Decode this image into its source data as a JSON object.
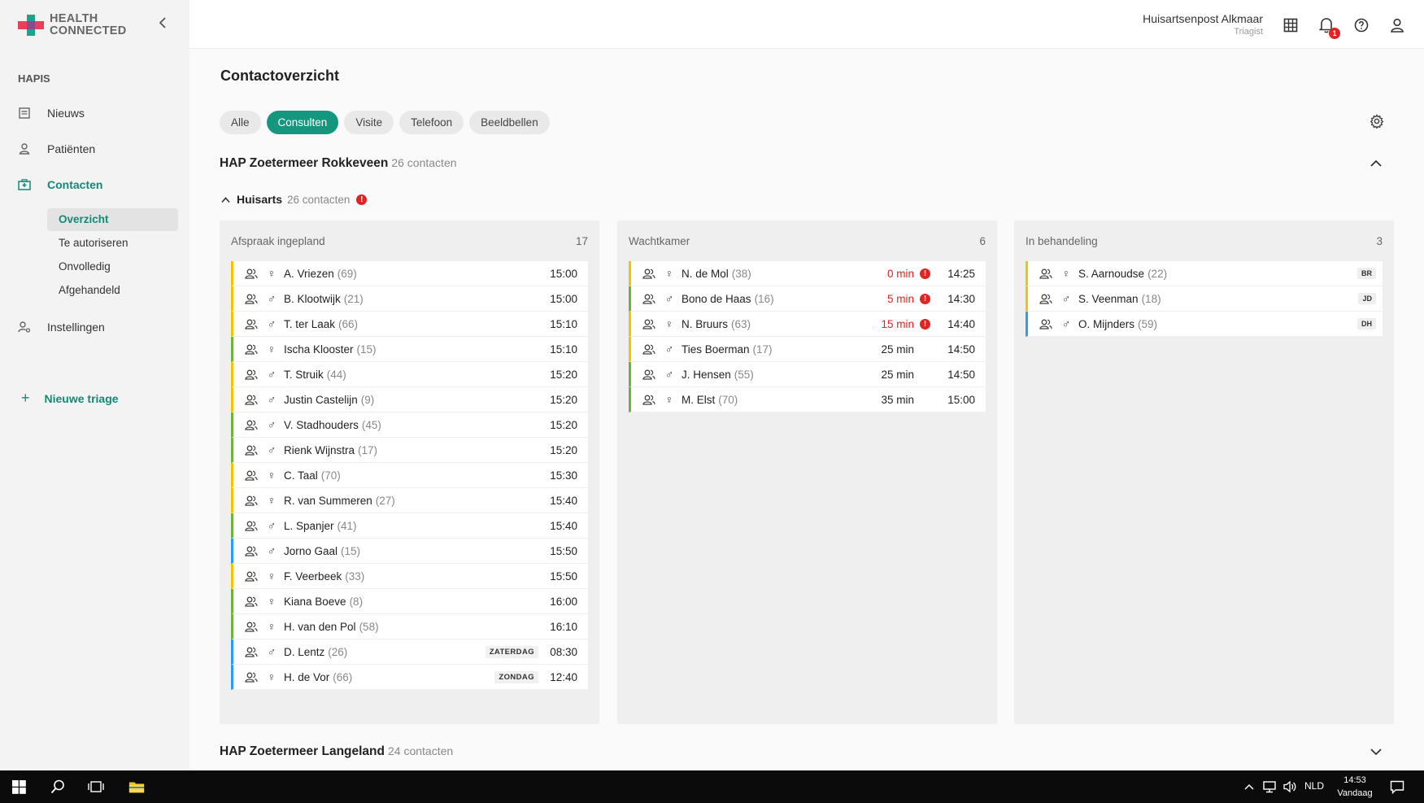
{
  "brand": {
    "line1": "HEALTH",
    "line2": "CONNECTED"
  },
  "sidebar": {
    "section": "HAPIS",
    "items": [
      {
        "label": "Nieuws",
        "icon": "newspaper-icon"
      },
      {
        "label": "Patiënten",
        "icon": "person-icon"
      },
      {
        "label": "Contacten",
        "icon": "hospital-icon"
      },
      {
        "label": "Instellingen",
        "icon": "user-settings-icon"
      }
    ],
    "subitems": [
      "Overzicht",
      "Te autoriseren",
      "Onvolledig",
      "Afgehandeld"
    ],
    "new_triage": "Nieuwe triage"
  },
  "header": {
    "org_name": "Huisartsenpost Alkmaar",
    "org_role": "Triagist",
    "notification_count": "1"
  },
  "page": {
    "title": "Contactoverzicht",
    "filters": [
      "Alle",
      "Consulten",
      "Visite",
      "Telefoon",
      "Beeldbellen"
    ],
    "active_filter": "Consulten"
  },
  "groups": [
    {
      "name": "HAP Zoetermeer Rokkeveen",
      "count": "26 contacten"
    },
    {
      "name": "HAP Zoetermeer Langeland",
      "count": "24 contacten"
    }
  ],
  "subgroup": {
    "name": "Huisarts",
    "count": "26 contacten",
    "alert": "!"
  },
  "columns": [
    {
      "title": "Afspraak ingepland",
      "count": "17",
      "rows": [
        {
          "color": "yellow",
          "sex": "♀",
          "name": "A. Vriezen",
          "age": "(69)",
          "time": "15:00"
        },
        {
          "color": "yellow",
          "sex": "♂",
          "name": "B. Klootwijk",
          "age": "(21)",
          "time": "15:00"
        },
        {
          "color": "yellow",
          "sex": "♂",
          "name": "T. ter Laak",
          "age": "(66)",
          "time": "15:10"
        },
        {
          "color": "green",
          "sex": "♀",
          "name": "Ischa Klooster",
          "age": "(15)",
          "time": "15:10"
        },
        {
          "color": "yellow",
          "sex": "♂",
          "name": "T. Struik",
          "age": "(44)",
          "time": "15:20"
        },
        {
          "color": "yellow",
          "sex": "♂",
          "name": "Justin Castelijn",
          "age": "(9)",
          "time": "15:20"
        },
        {
          "color": "green",
          "sex": "♂",
          "name": "V. Stadhouders",
          "age": "(45)",
          "time": "15:20"
        },
        {
          "color": "green",
          "sex": "♂",
          "name": "Rienk Wijnstra",
          "age": "(17)",
          "time": "15:20"
        },
        {
          "color": "yellow",
          "sex": "♀",
          "name": "C. Taal",
          "age": "(70)",
          "time": "15:30"
        },
        {
          "color": "yellow",
          "sex": "♀",
          "name": "R. van Summeren",
          "age": "(27)",
          "time": "15:40"
        },
        {
          "color": "green",
          "sex": "♂",
          "name": "L. Spanjer",
          "age": "(41)",
          "time": "15:40"
        },
        {
          "color": "blue",
          "sex": "♂",
          "name": "Jorno Gaal",
          "age": "(15)",
          "time": "15:50"
        },
        {
          "color": "yellow",
          "sex": "♀",
          "name": "F. Veerbeek",
          "age": "(33)",
          "time": "15:50"
        },
        {
          "color": "green",
          "sex": "♀",
          "name": "Kiana Boeve",
          "age": "(8)",
          "time": "16:00"
        },
        {
          "color": "green",
          "sex": "♀",
          "name": "H. van den Pol",
          "age": "(58)",
          "time": "16:10"
        },
        {
          "color": "blue",
          "sex": "♂",
          "name": "D. Lentz",
          "age": "(26)",
          "time": "08:30",
          "day": "ZATERDAG"
        },
        {
          "color": "blue",
          "sex": "♀",
          "name": "H. de Vor",
          "age": "(66)",
          "time": "12:40",
          "day": "ZONDAG"
        }
      ]
    },
    {
      "title": "Wachtkamer",
      "count": "6",
      "rows": [
        {
          "color": "yellow",
          "sex": "♀",
          "name": "N. de Mol",
          "age": "(38)",
          "wait": "0 min",
          "late": true,
          "time": "14:25"
        },
        {
          "color": "green",
          "sex": "♂",
          "name": "Bono de Haas",
          "age": "(16)",
          "wait": "5 min",
          "late": true,
          "time": "14:30"
        },
        {
          "color": "yellow",
          "sex": "♀",
          "name": "N. Bruurs",
          "age": "(63)",
          "wait": "15 min",
          "late": true,
          "time": "14:40"
        },
        {
          "color": "yellow",
          "sex": "♂",
          "name": "Ties Boerman",
          "age": "(17)",
          "wait": "25 min",
          "late": false,
          "time": "14:50"
        },
        {
          "color": "green",
          "sex": "♂",
          "name": "J. Hensen",
          "age": "(55)",
          "wait": "25 min",
          "late": false,
          "time": "14:50"
        },
        {
          "color": "green",
          "sex": "♀",
          "name": "M. Elst",
          "age": "(70)",
          "wait": "35 min",
          "late": false,
          "time": "15:00"
        }
      ]
    },
    {
      "title": "In behandeling",
      "count": "3",
      "rows": [
        {
          "color": "yellow",
          "sex": "♀",
          "name": "S. Aarnoudse",
          "age": "(22)",
          "initials": "BR"
        },
        {
          "color": "yellow",
          "sex": "♂",
          "name": "S. Veenman",
          "age": "(18)",
          "initials": "JD"
        },
        {
          "color": "blue",
          "sex": "♂",
          "name": "O. Mijnders",
          "age": "(59)",
          "initials": "DH"
        }
      ]
    }
  ],
  "taskbar": {
    "lang": "NLD",
    "time": "14:53",
    "date": "Vandaag"
  }
}
